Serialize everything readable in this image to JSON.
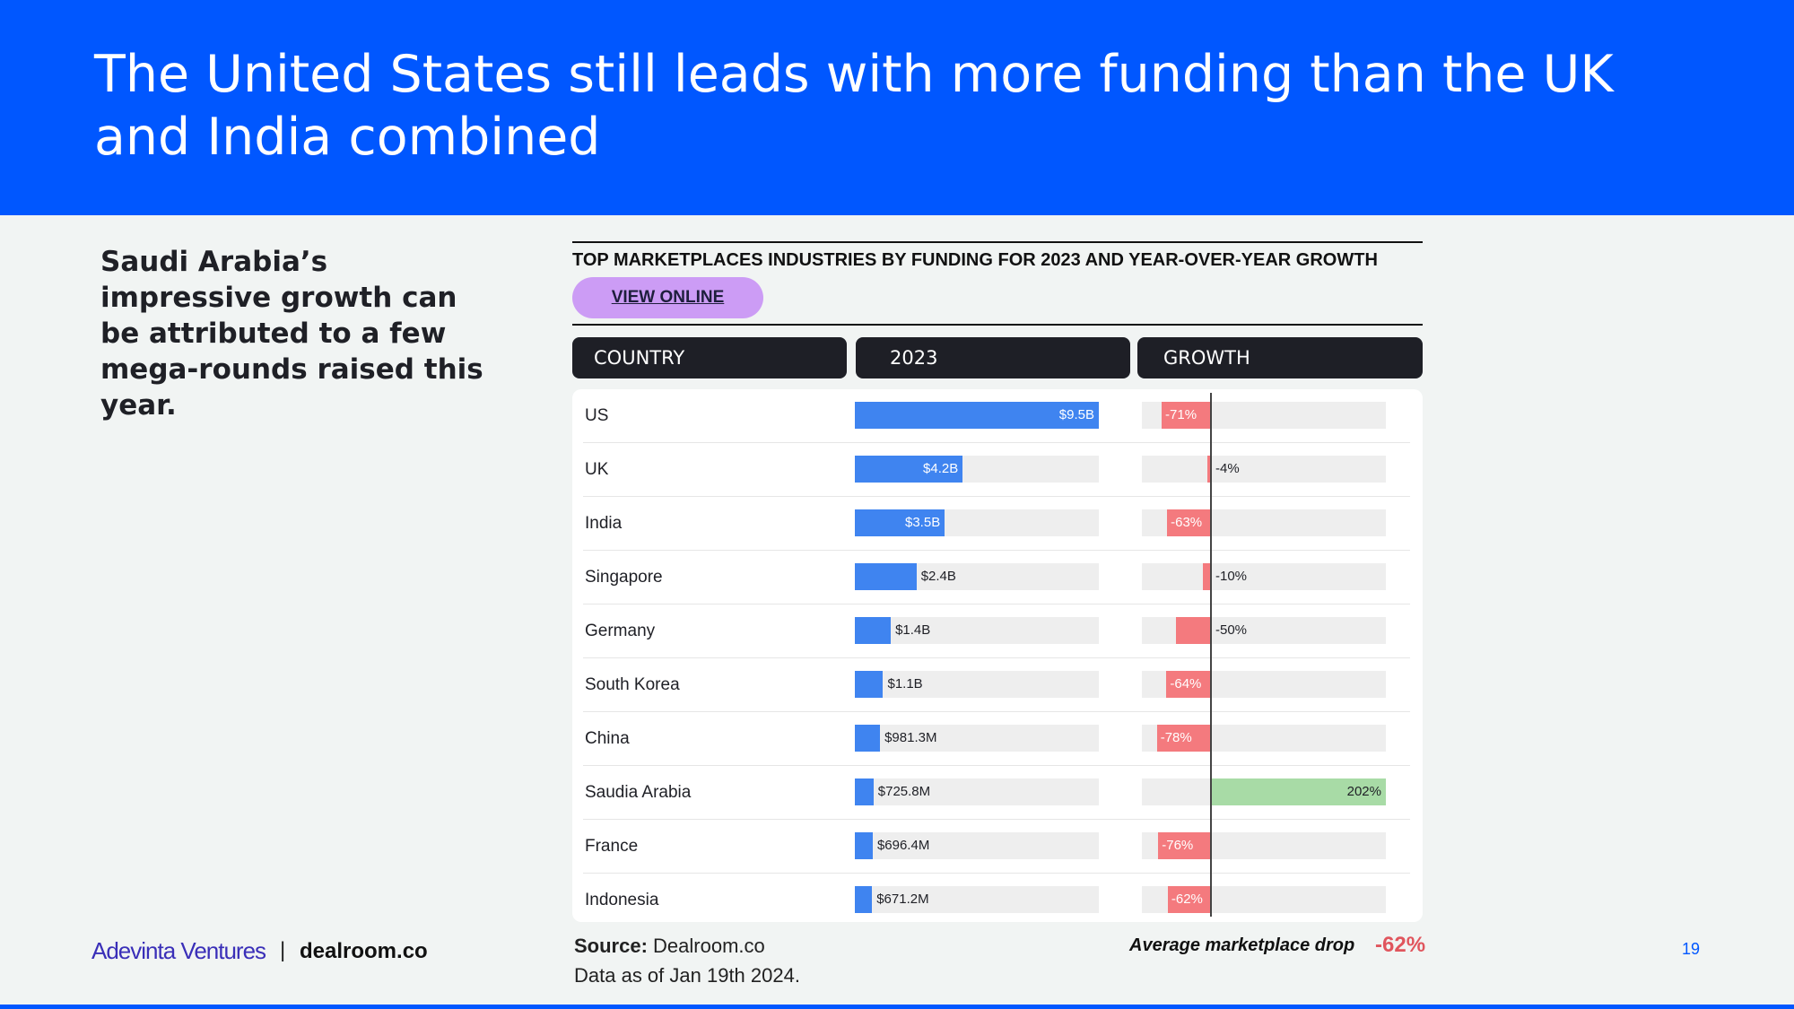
{
  "header": {
    "title": "The United States still leads with more funding than the UK and India combined"
  },
  "side_text": "Saudi Arabia’s impressive growth can be attributed to a few mega-rounds raised this year.",
  "chart": {
    "title": "TOP MARKETPLACES INDUSTRIES BY FUNDING FOR 2023 AND YEAR-OVER-YEAR GROWTH",
    "view_online_label": "VIEW ONLINE",
    "columns": [
      "COUNTRY",
      "2023",
      "GROWTH"
    ]
  },
  "chart_data": {
    "type": "table",
    "title": "TOP MARKETPLACES INDUSTRIES BY FUNDING FOR 2023 AND YEAR-OVER-YEAR GROWTH",
    "columns": [
      "COUNTRY",
      "2023",
      "GROWTH"
    ],
    "funding_max": 9.5,
    "growth_range": [
      -100,
      202
    ],
    "rows": [
      {
        "country": "US",
        "funding": 9.5,
        "funding_label": "$9.5B",
        "growth": -71,
        "growth_label": "-71%"
      },
      {
        "country": "UK",
        "funding": 4.2,
        "funding_label": "$4.2B",
        "growth": -4,
        "growth_label": "-4%"
      },
      {
        "country": "India",
        "funding": 3.5,
        "funding_label": "$3.5B",
        "growth": -63,
        "growth_label": "-63%"
      },
      {
        "country": "Singapore",
        "funding": 2.4,
        "funding_label": "$2.4B",
        "growth": -10,
        "growth_label": "-10%"
      },
      {
        "country": "Germany",
        "funding": 1.4,
        "funding_label": "$1.4B",
        "growth": -50,
        "growth_label": "-50%"
      },
      {
        "country": "South Korea",
        "funding": 1.1,
        "funding_label": "$1.1B",
        "growth": -64,
        "growth_label": "-64%"
      },
      {
        "country": "China",
        "funding": 0.9813,
        "funding_label": "$981.3M",
        "growth": -78,
        "growth_label": "-78%"
      },
      {
        "country": "Saudia Arabia",
        "funding": 0.7258,
        "funding_label": "$725.8M",
        "growth": 202,
        "growth_label": "202%"
      },
      {
        "country": "France",
        "funding": 0.6964,
        "funding_label": "$696.4M",
        "growth": -76,
        "growth_label": "-76%"
      },
      {
        "country": "Indonesia",
        "funding": 0.6712,
        "funding_label": "$671.2M",
        "growth": -62,
        "growth_label": "-62%"
      }
    ],
    "colors": {
      "funding": "#3f84f0",
      "negative": "#f47a7e",
      "positive": "#a8dba6",
      "track": "#eeeeee"
    }
  },
  "footer": {
    "logo": "Adevinta Ventures",
    "separator": "|",
    "brand": "dealroom.co",
    "source_label": "Source:",
    "source_value": "Dealroom.co",
    "data_as_of": "Data as of Jan 19th 2024.",
    "avg_label": "Average marketplace drop",
    "avg_value": "-62%",
    "page_number": "19"
  }
}
